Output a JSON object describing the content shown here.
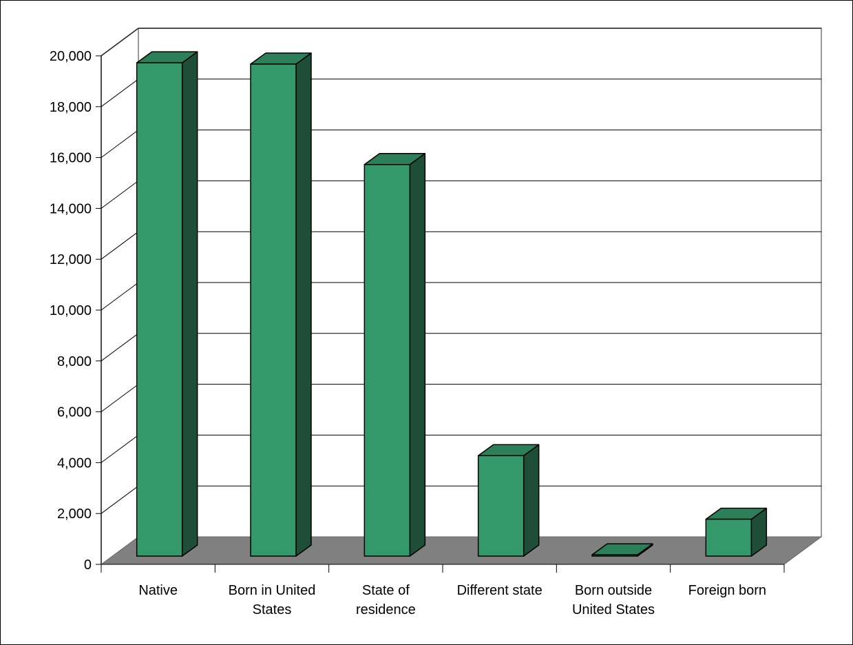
{
  "chart_data": {
    "type": "bar",
    "title": "",
    "xlabel": "",
    "ylabel": "",
    "categories": [
      [
        "Native"
      ],
      [
        "Born in United",
        "States"
      ],
      [
        "State of",
        "residence"
      ],
      [
        "Different state"
      ],
      [
        "Born outside",
        "United States"
      ],
      [
        "Foreign born"
      ]
    ],
    "values": [
      19400,
      19350,
      15400,
      3950,
      50,
      1450
    ],
    "ylim": [
      0,
      20000
    ],
    "yticks": [
      0,
      2000,
      4000,
      6000,
      8000,
      10000,
      12000,
      14000,
      16000,
      18000,
      20000
    ],
    "ytick_labels": [
      "0",
      "2,000",
      "4,000",
      "6,000",
      "8,000",
      "10,000",
      "12,000",
      "14,000",
      "16,000",
      "18,000",
      "20,000"
    ],
    "grid": true,
    "style": "3d",
    "colors": {
      "bar_front": "#33996A",
      "bar_top": "#2C7F58",
      "bar_side": "#1E4E37",
      "floor": "#808080",
      "gridline": "#000000",
      "walls": "#999999"
    }
  }
}
